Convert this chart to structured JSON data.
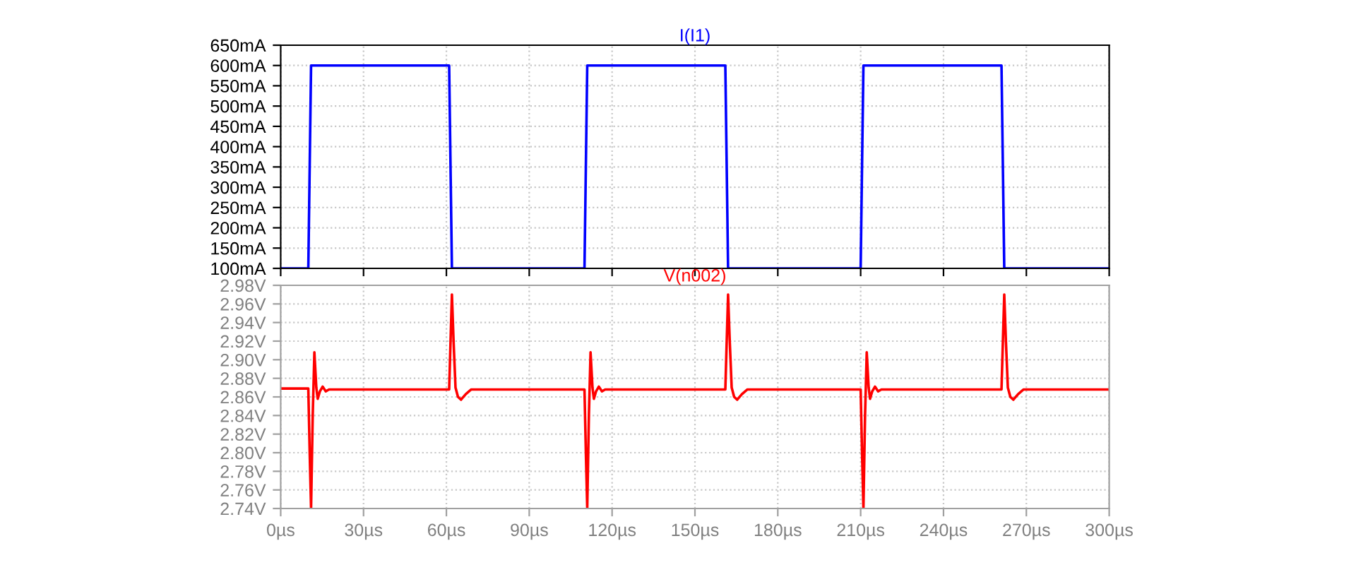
{
  "chart_data": [
    {
      "type": "line",
      "title": "I(I1)",
      "x": [
        0,
        10,
        11,
        61,
        62,
        110,
        111,
        161,
        162,
        210,
        211,
        261,
        262,
        300
      ],
      "series": [
        {
          "color": "#0000ff",
          "values": [
            100,
            100,
            600,
            600,
            100,
            100,
            600,
            600,
            100,
            100,
            600,
            600,
            100,
            100
          ]
        }
      ],
      "xlim": [
        0,
        300
      ],
      "xticks": [
        0,
        30,
        60,
        90,
        120,
        150,
        180,
        210,
        240,
        270,
        300
      ],
      "ylim": [
        100,
        650
      ],
      "yticks": [
        {
          "value": 100,
          "label": "100mA"
        },
        {
          "value": 150,
          "label": "150mA"
        },
        {
          "value": 200,
          "label": "200mA"
        },
        {
          "value": 250,
          "label": "250mA"
        },
        {
          "value": 300,
          "label": "300mA"
        },
        {
          "value": 350,
          "label": "350mA"
        },
        {
          "value": 400,
          "label": "400mA"
        },
        {
          "value": 450,
          "label": "450mA"
        },
        {
          "value": 500,
          "label": "500mA"
        },
        {
          "value": 550,
          "label": "550mA"
        },
        {
          "value": 600,
          "label": "600mA"
        },
        {
          "value": 650,
          "label": "650mA"
        }
      ],
      "tick_labels": "y",
      "grid": true,
      "line_style": "solid"
    },
    {
      "type": "line",
      "title": "V(n002)",
      "x": [
        0,
        10,
        10.5,
        11,
        11.6,
        12.2,
        12.9,
        13.4,
        14.2,
        15.2,
        16.3,
        17.5,
        61,
        61.6,
        62,
        62.6,
        63.3,
        64.2,
        65.3,
        67,
        69,
        110,
        110.5,
        111,
        111.6,
        112.2,
        112.9,
        113.4,
        114.2,
        115.2,
        116.3,
        117.5,
        161,
        161.6,
        162,
        162.6,
        163.3,
        164.2,
        165.3,
        167,
        169,
        210,
        210.5,
        211,
        211.6,
        212.2,
        212.9,
        213.4,
        214.2,
        215.2,
        216.3,
        217.5,
        261,
        261.6,
        262,
        262.6,
        263.3,
        264.2,
        265.3,
        267,
        269,
        300
      ],
      "series": [
        {
          "color": "#ff0000",
          "values": [
            2.869,
            2.869,
            2.8,
            2.74,
            2.84,
            2.908,
            2.87,
            2.858,
            2.866,
            2.871,
            2.866,
            2.868,
            2.868,
            2.93,
            2.97,
            2.92,
            2.87,
            2.86,
            2.857,
            2.863,
            2.868,
            2.868,
            2.8,
            2.74,
            2.84,
            2.908,
            2.87,
            2.858,
            2.866,
            2.871,
            2.866,
            2.868,
            2.868,
            2.93,
            2.97,
            2.92,
            2.87,
            2.86,
            2.857,
            2.863,
            2.868,
            2.868,
            2.8,
            2.74,
            2.84,
            2.908,
            2.87,
            2.858,
            2.866,
            2.871,
            2.866,
            2.868,
            2.868,
            2.93,
            2.97,
            2.92,
            2.87,
            2.86,
            2.857,
            2.863,
            2.868,
            2.868
          ]
        }
      ],
      "xlim": [
        0,
        300
      ],
      "xticks": [
        {
          "value": 0,
          "label": "0µs"
        },
        {
          "value": 30,
          "label": "30µs"
        },
        {
          "value": 60,
          "label": "60µs"
        },
        {
          "value": 90,
          "label": "90µs"
        },
        {
          "value": 120,
          "label": "120µs"
        },
        {
          "value": 150,
          "label": "150µs"
        },
        {
          "value": 180,
          "label": "180µs"
        },
        {
          "value": 210,
          "label": "210µs"
        },
        {
          "value": 240,
          "label": "240µs"
        },
        {
          "value": 270,
          "label": "270µs"
        },
        {
          "value": 300,
          "label": "300µs"
        }
      ],
      "ylim": [
        2.74,
        2.98
      ],
      "yticks": [
        {
          "value": 2.74,
          "label": "2.74V"
        },
        {
          "value": 2.76,
          "label": "2.76V"
        },
        {
          "value": 2.78,
          "label": "2.78V"
        },
        {
          "value": 2.8,
          "label": "2.80V"
        },
        {
          "value": 2.82,
          "label": "2.82V"
        },
        {
          "value": 2.84,
          "label": "2.84V"
        },
        {
          "value": 2.86,
          "label": "2.86V"
        },
        {
          "value": 2.88,
          "label": "2.88V"
        },
        {
          "value": 2.9,
          "label": "2.90V"
        },
        {
          "value": 2.92,
          "label": "2.92V"
        },
        {
          "value": 2.94,
          "label": "2.94V"
        },
        {
          "value": 2.96,
          "label": "2.96V"
        },
        {
          "value": 2.98,
          "label": "2.98V"
        }
      ],
      "grid": true,
      "line_style": "solid"
    }
  ]
}
